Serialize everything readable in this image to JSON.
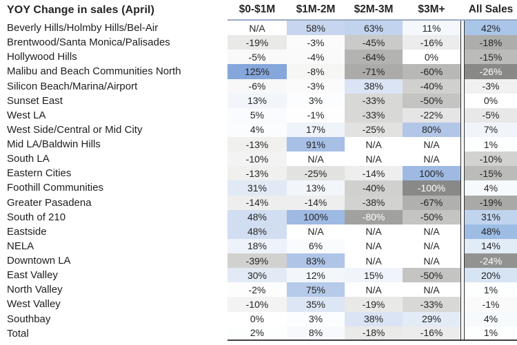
{
  "title": "YOY Change in sales (April)",
  "colors": {
    "band_blue_max": "#86a7db",
    "all_sales_blue_max": "#9dbde5",
    "gray_min": "#898987",
    "text_dark": "#242424",
    "text_light": "#ffffff",
    "header_underline": "#98a9c4",
    "bottom_border": "#3f3f3f",
    "separator_line": "#2b2b2b"
  },
  "chart_data": {
    "type": "heatmap-table",
    "title": "YOY Change in sales (April)",
    "columns": [
      "$0-$1M",
      "$1M-2M",
      "$2M-3M",
      "$3M+",
      "All Sales"
    ],
    "color_scales": {
      "bands": {
        "min": -100,
        "mid": 0,
        "max": 125
      },
      "all_sales": {
        "min": -26,
        "mid": 0,
        "max": 48
      }
    },
    "rows": [
      {
        "region": "Beverly Hills/Holmby Hills/Bel-Air",
        "values": [
          "N/A",
          "58%",
          "63%",
          "11%",
          "42%"
        ]
      },
      {
        "region": "Brentwood/Santa Monica/Palisades",
        "values": [
          "-19%",
          "-3%",
          "-45%",
          "-16%",
          "-18%"
        ]
      },
      {
        "region": "Hollywood Hills",
        "values": [
          "-5%",
          "-4%",
          "-64%",
          "0%",
          "-15%"
        ]
      },
      {
        "region": "Malibu and Beach Communities North",
        "values": [
          "125%",
          "-8%",
          "-71%",
          "-60%",
          "-26%"
        ]
      },
      {
        "region": "Silicon Beach/Marina/Airport",
        "values": [
          "-6%",
          "-3%",
          "38%",
          "-40%",
          "-3%"
        ]
      },
      {
        "region": "Sunset East",
        "values": [
          "13%",
          "3%",
          "-33%",
          "-50%",
          "0%"
        ]
      },
      {
        "region": "West LA",
        "values": [
          "5%",
          "-1%",
          "-33%",
          "-22%",
          "-5%"
        ]
      },
      {
        "region": "West Side/Central or Mid City",
        "values": [
          "4%",
          "17%",
          "-25%",
          "80%",
          "7%"
        ]
      },
      {
        "region": "Mid LA/Baldwin Hills",
        "values": [
          "-13%",
          "91%",
          "N/A",
          "N/A",
          "1%"
        ]
      },
      {
        "region": "South LA",
        "values": [
          "-10%",
          "N/A",
          "N/A",
          "N/A",
          "-10%"
        ]
      },
      {
        "region": "Eastern Cities",
        "values": [
          "-13%",
          "-25%",
          "-14%",
          "100%",
          "-15%"
        ]
      },
      {
        "region": "Foothill Communities",
        "values": [
          "31%",
          "13%",
          "-40%",
          "-100%",
          "4%"
        ]
      },
      {
        "region": "Greater Pasadena",
        "values": [
          "-14%",
          "-14%",
          "-38%",
          "-67%",
          "-19%"
        ]
      },
      {
        "region": "South of 210",
        "values": [
          "48%",
          "100%",
          "-80%",
          "-50%",
          "31%"
        ]
      },
      {
        "region": "Eastside",
        "values": [
          "48%",
          "N/A",
          "N/A",
          "N/A",
          "48%"
        ]
      },
      {
        "region": "NELA",
        "values": [
          "18%",
          "6%",
          "N/A",
          "N/A",
          "14%"
        ]
      },
      {
        "region": "Downtown LA",
        "values": [
          "-39%",
          "83%",
          "N/A",
          "N/A",
          "-24%"
        ]
      },
      {
        "region": "East Valley",
        "values": [
          "30%",
          "12%",
          "15%",
          "-50%",
          "20%"
        ]
      },
      {
        "region": "North Valley",
        "values": [
          "-2%",
          "75%",
          "N/A",
          "N/A",
          "1%"
        ]
      },
      {
        "region": "West Valley",
        "values": [
          "-10%",
          "35%",
          "-19%",
          "-33%",
          "-1%"
        ]
      },
      {
        "region": "Southbay",
        "values": [
          "0%",
          "3%",
          "38%",
          "29%",
          "4%"
        ]
      },
      {
        "region": "Total",
        "values": [
          "2%",
          "8%",
          "-18%",
          "-16%",
          "1%"
        ]
      }
    ]
  }
}
